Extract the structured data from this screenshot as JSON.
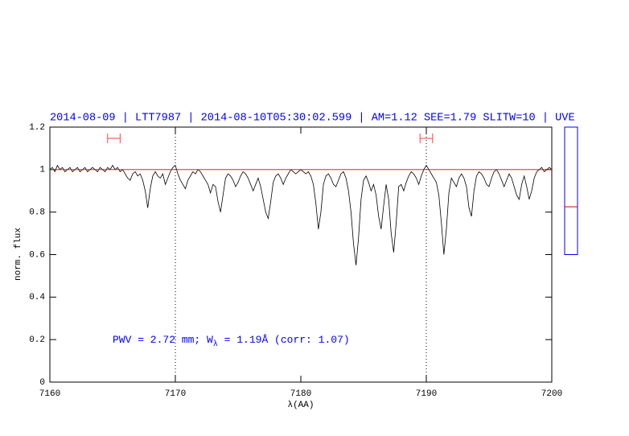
{
  "chart_data": {
    "type": "line",
    "title": "2014-08-09 | LTT7987 | 2014-08-10T05:30:02.599 | AM=1.12 SEE=1.79 SLITW=10 | UVE",
    "xlabel": "λ(AA)",
    "ylabel": "norm. flux",
    "annotation": {
      "text": "PWV = 2.72 mm; W",
      "subscript": "λ",
      "rest": " = 1.19Å (corr: 1.07)",
      "color": "#0000ff"
    },
    "xlim": [
      7160,
      7200
    ],
    "ylim": [
      0,
      1.2
    ],
    "xticks": [
      7160,
      7170,
      7180,
      7190,
      7200
    ],
    "yticks": [
      0,
      0.2,
      0.4,
      0.6,
      0.8,
      1,
      1.2
    ],
    "reference_line": {
      "value": 1,
      "color": "#e00000"
    },
    "vlines": [
      7170,
      7190
    ],
    "ranges": [
      {
        "x": [
          7164.6,
          7165.6
        ],
        "y": 1.147,
        "color": "#ff4040"
      },
      {
        "x": [
          7189.5,
          7190.5
        ],
        "y": 1.147,
        "color": "#ff4040"
      }
    ],
    "side_gauge": {
      "range": [
        0.6,
        1.2
      ],
      "value": 0.825,
      "frame_color": "#0000ff",
      "color": "#e00000"
    },
    "series": [
      {
        "color": "#000000",
        "x": [
          7160,
          7160.2,
          7160.4,
          7160.6,
          7160.8,
          7161,
          7161.2,
          7161.4,
          7161.6,
          7161.8,
          7162,
          7162.2,
          7162.4,
          7162.6,
          7162.8,
          7163,
          7163.2,
          7163.4,
          7163.6,
          7163.8,
          7164,
          7164.2,
          7164.4,
          7164.6,
          7164.8,
          7165,
          7165.2,
          7165.4,
          7165.6,
          7165.8,
          7166,
          7166.2,
          7166.4,
          7166.6,
          7166.8,
          7167,
          7167.2,
          7167.4,
          7167.6,
          7167.8,
          7168,
          7168.2,
          7168.4,
          7168.6,
          7168.8,
          7169,
          7169.2,
          7169.4,
          7169.6,
          7169.8,
          7170,
          7170.2,
          7170.4,
          7170.6,
          7170.8,
          7171,
          7171.2,
          7171.4,
          7171.6,
          7171.8,
          7172,
          7172.2,
          7172.4,
          7172.6,
          7172.8,
          7173,
          7173.2,
          7173.4,
          7173.6,
          7173.8,
          7174,
          7174.2,
          7174.4,
          7174.6,
          7174.8,
          7175,
          7175.2,
          7175.4,
          7175.6,
          7175.8,
          7176,
          7176.2,
          7176.4,
          7176.6,
          7176.8,
          7177,
          7177.2,
          7177.4,
          7177.6,
          7177.8,
          7178,
          7178.2,
          7178.4,
          7178.6,
          7178.8,
          7179,
          7179.2,
          7179.4,
          7179.6,
          7179.8,
          7180,
          7180.2,
          7180.4,
          7180.6,
          7180.8,
          7181,
          7181.2,
          7181.4,
          7181.6,
          7181.8,
          7182,
          7182.2,
          7182.4,
          7182.6,
          7182.8,
          7183,
          7183.2,
          7183.4,
          7183.6,
          7183.8,
          7184,
          7184.2,
          7184.4,
          7184.6,
          7184.8,
          7185,
          7185.2,
          7185.4,
          7185.6,
          7185.8,
          7186,
          7186.2,
          7186.4,
          7186.6,
          7186.8,
          7187,
          7187.2,
          7187.4,
          7187.6,
          7187.8,
          7188,
          7188.2,
          7188.4,
          7188.6,
          7188.8,
          7189,
          7189.2,
          7189.4,
          7189.6,
          7189.8,
          7190,
          7190.2,
          7190.4,
          7190.6,
          7190.8,
          7191,
          7191.2,
          7191.4,
          7191.6,
          7191.8,
          7192,
          7192.2,
          7192.4,
          7192.6,
          7192.8,
          7193,
          7193.2,
          7193.4,
          7193.6,
          7193.8,
          7194,
          7194.2,
          7194.4,
          7194.6,
          7194.8,
          7195,
          7195.2,
          7195.4,
          7195.6,
          7195.8,
          7196,
          7196.2,
          7196.4,
          7196.6,
          7196.8,
          7197,
          7197.2,
          7197.4,
          7197.6,
          7197.8,
          7198,
          7198.2,
          7198.4,
          7198.6,
          7198.8,
          7199,
          7199.2,
          7199.4,
          7199.6,
          7199.8,
          7200
        ],
        "values": [
          1.0,
          1.01,
          0.99,
          1.02,
          1.0,
          1.01,
          0.99,
          1.0,
          1.01,
          0.99,
          1.0,
          1.01,
          0.99,
          1.0,
          1.01,
          0.99,
          1.0,
          1.01,
          1.0,
          0.99,
          1.01,
          1.0,
          0.99,
          1.01,
          1.0,
          1.02,
          1.0,
          1.01,
          0.99,
          1.0,
          0.98,
          0.96,
          0.95,
          0.98,
          0.99,
          0.97,
          0.98,
          0.95,
          0.9,
          0.82,
          0.91,
          0.97,
          0.99,
          0.97,
          0.96,
          0.98,
          0.93,
          0.96,
          0.99,
          1.01,
          1.02,
          0.98,
          0.95,
          0.93,
          0.91,
          0.95,
          0.97,
          0.99,
          0.98,
          1.0,
          0.99,
          0.97,
          0.95,
          0.93,
          0.89,
          0.93,
          0.92,
          0.85,
          0.8,
          0.88,
          0.96,
          0.98,
          0.97,
          0.95,
          0.92,
          0.94,
          0.97,
          0.99,
          0.98,
          0.96,
          0.93,
          0.9,
          0.93,
          0.96,
          0.92,
          0.86,
          0.8,
          0.77,
          0.85,
          0.94,
          0.97,
          0.98,
          0.96,
          0.93,
          0.96,
          0.98,
          1.0,
          0.99,
          0.98,
          0.99,
          1.0,
          0.99,
          0.98,
          0.99,
          0.97,
          0.93,
          0.84,
          0.72,
          0.8,
          0.93,
          0.97,
          0.98,
          0.96,
          0.93,
          0.92,
          0.95,
          0.98,
          0.99,
          0.96,
          0.9,
          0.8,
          0.65,
          0.55,
          0.68,
          0.86,
          0.95,
          0.97,
          0.94,
          0.9,
          0.93,
          0.88,
          0.78,
          0.72,
          0.83,
          0.93,
          0.86,
          0.7,
          0.61,
          0.75,
          0.92,
          0.93,
          0.9,
          0.94,
          0.97,
          0.99,
          0.98,
          0.96,
          0.93,
          0.97,
          1.0,
          1.02,
          1.0,
          0.98,
          0.96,
          0.94,
          0.88,
          0.75,
          0.6,
          0.72,
          0.89,
          0.96,
          0.94,
          0.92,
          0.96,
          0.98,
          0.96,
          0.92,
          0.82,
          0.78,
          0.9,
          0.97,
          0.99,
          0.98,
          0.96,
          0.93,
          0.92,
          0.96,
          0.99,
          1.0,
          0.98,
          0.95,
          0.92,
          0.95,
          0.98,
          0.96,
          0.92,
          0.88,
          0.86,
          0.93,
          0.97,
          0.92,
          0.86,
          0.9,
          0.96,
          0.99,
          1.0,
          1.01,
          0.99,
          1.0,
          1.01,
          1.0
        ]
      }
    ]
  }
}
